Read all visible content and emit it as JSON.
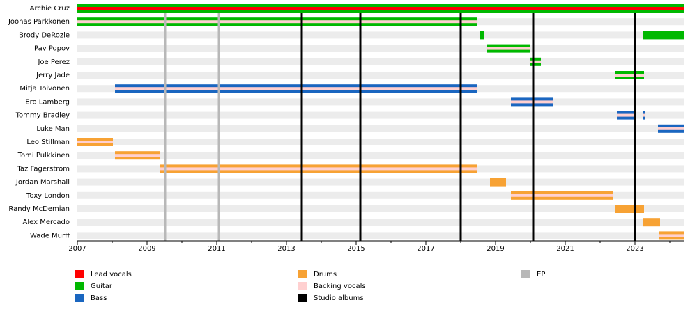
{
  "chart_data": {
    "type": "timeline",
    "xlim": [
      2007,
      2024.4
    ],
    "xticks": [
      2007,
      2009,
      2011,
      2013,
      2015,
      2017,
      2019,
      2021,
      2023
    ],
    "minor_xticks": [
      2008,
      2010,
      2012,
      2014,
      2016,
      2018,
      2020,
      2022,
      2024
    ],
    "legend": [
      {
        "name": "Lead vocals",
        "color": "#ff0000"
      },
      {
        "name": "Guitar",
        "color": "#00b800"
      },
      {
        "name": "Bass",
        "color": "#1a66c0"
      },
      {
        "name": "Drums",
        "color": "#f7a234"
      },
      {
        "name": "Backing vocals",
        "color": "#ffd0d0"
      },
      {
        "name": "Studio albums",
        "color": "#000000"
      },
      {
        "name": "EP",
        "color": "#b8b8b8"
      }
    ],
    "releases": [
      {
        "kind": "EP",
        "x": [
          2009.52,
          2011.06
        ]
      },
      {
        "kind": "Studio albums",
        "x": [
          2013.44,
          2015.12,
          2018.0,
          2020.08,
          2023.0
        ]
      }
    ],
    "members": [
      {
        "name": "Archie Cruz",
        "bars": [
          {
            "start": 2007,
            "end": 2024.4,
            "role": "Guitar",
            "also": "Lead vocals"
          }
        ]
      },
      {
        "name": "Joonas Parkkonen",
        "bars": [
          {
            "start": 2007,
            "end": 2018.48,
            "role": "Guitar",
            "also": "Backing vocals"
          }
        ]
      },
      {
        "name": "Brody DeRozie",
        "bars": [
          {
            "start": 2018.54,
            "end": 2018.66,
            "role": "Guitar"
          },
          {
            "start": 2023.24,
            "end": 2024.4,
            "role": "Guitar"
          }
        ]
      },
      {
        "name": "Pav Popov",
        "bars": [
          {
            "start": 2018.76,
            "end": 2020.0,
            "role": "Guitar",
            "also": "Backing vocals"
          }
        ]
      },
      {
        "name": "Joe Perez",
        "bars": [
          {
            "start": 2019.98,
            "end": 2020.3,
            "role": "Guitar",
            "also": "Backing vocals"
          }
        ]
      },
      {
        "name": "Jerry Jade",
        "bars": [
          {
            "start": 2022.42,
            "end": 2023.26,
            "role": "Guitar",
            "also": "Backing vocals"
          }
        ]
      },
      {
        "name": "Mitja Toivonen",
        "bars": [
          {
            "start": 2008.08,
            "end": 2018.48,
            "role": "Bass",
            "also": "Backing vocals"
          }
        ]
      },
      {
        "name": "Ero Lamberg",
        "bars": [
          {
            "start": 2019.44,
            "end": 2020.66,
            "role": "Bass",
            "also": "Backing vocals"
          }
        ]
      },
      {
        "name": "Tommy Bradley",
        "bars": [
          {
            "start": 2022.48,
            "end": 2023.04,
            "role": "Bass",
            "also": "Backing vocals"
          },
          {
            "start": 2023.24,
            "end": 2023.3,
            "role": "Bass",
            "also": "Backing vocals"
          }
        ]
      },
      {
        "name": "Luke Man",
        "bars": [
          {
            "start": 2023.66,
            "end": 2024.4,
            "role": "Bass",
            "also": "Backing vocals"
          }
        ]
      },
      {
        "name": "Leo Stillman",
        "bars": [
          {
            "start": 2007,
            "end": 2008.02,
            "role": "Drums",
            "also": "Backing vocals"
          }
        ]
      },
      {
        "name": "Tomi Pulkkinen",
        "bars": [
          {
            "start": 2008.08,
            "end": 2009.38,
            "role": "Drums",
            "also": "Backing vocals"
          }
        ]
      },
      {
        "name": "Taz Fagerström",
        "bars": [
          {
            "start": 2009.36,
            "end": 2018.48,
            "role": "Drums",
            "also": "Backing vocals"
          }
        ]
      },
      {
        "name": "Jordan Marshall",
        "bars": [
          {
            "start": 2018.84,
            "end": 2019.3,
            "role": "Drums"
          }
        ]
      },
      {
        "name": "Toxy London",
        "bars": [
          {
            "start": 2019.44,
            "end": 2022.38,
            "role": "Drums",
            "also": "Backing vocals"
          }
        ]
      },
      {
        "name": "Randy McDemian",
        "bars": [
          {
            "start": 2022.42,
            "end": 2023.26,
            "role": "Drums"
          }
        ]
      },
      {
        "name": "Alex Mercado",
        "bars": [
          {
            "start": 2023.24,
            "end": 2023.72,
            "role": "Drums"
          }
        ]
      },
      {
        "name": "Wade Murff",
        "bars": [
          {
            "start": 2023.7,
            "end": 2024.4,
            "role": "Drums",
            "also": "Backing vocals"
          }
        ]
      }
    ]
  }
}
